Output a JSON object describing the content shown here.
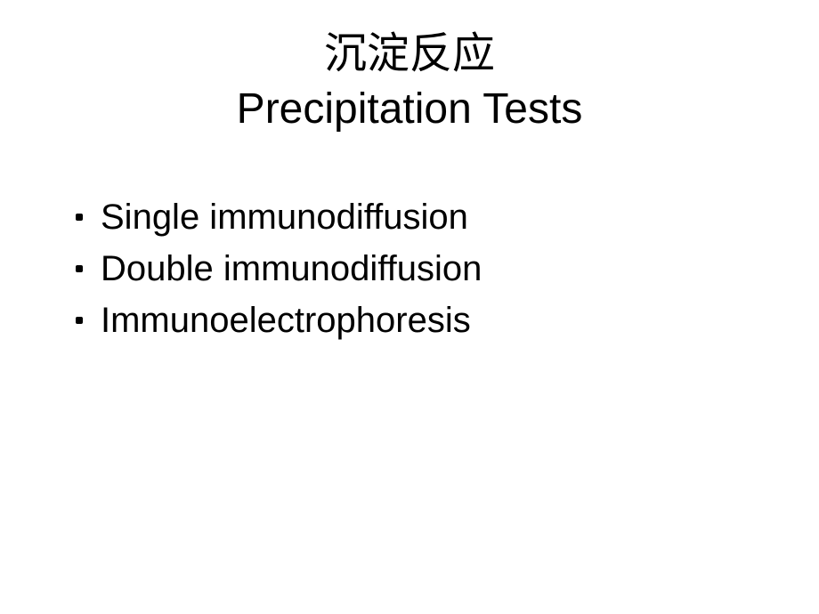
{
  "slide": {
    "title_cn": "沉淀反应",
    "title_en": "Precipitation Tests",
    "bullets": [
      "Single immunodiffusion",
      "Double immunodiffusion",
      "Immunoelectrophoresis"
    ]
  },
  "style": {
    "background_color": "#ffffff",
    "text_color": "#000000",
    "title_cn_font": "SimSun, serif",
    "body_font": "Comic Sans MS, cursive",
    "title_fontsize_pt": 36,
    "bullet_fontsize_pt": 30,
    "bullet_marker_color": "#000000"
  }
}
